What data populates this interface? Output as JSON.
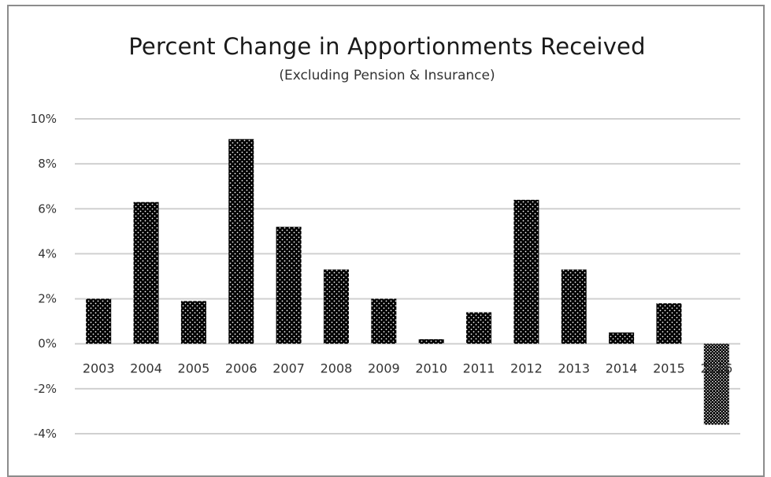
{
  "chart_data": {
    "type": "bar",
    "title": "Percent Change in Apportionments Received",
    "subtitle": "(Excluding Pension & Insurance)",
    "xlabel": "",
    "ylabel": "",
    "categories": [
      "2003",
      "2004",
      "2005",
      "2006",
      "2007",
      "2008",
      "2009",
      "2010",
      "2011",
      "2012",
      "2013",
      "2014",
      "2015",
      "2016"
    ],
    "values": [
      2.0,
      6.3,
      1.9,
      9.1,
      5.2,
      3.3,
      2.0,
      0.2,
      1.4,
      6.4,
      3.3,
      0.5,
      1.8,
      -3.6
    ],
    "value_unit": "%",
    "ylim": [
      -4,
      10
    ],
    "yticks": [
      10,
      8,
      6,
      4,
      2,
      0,
      -2,
      -4
    ],
    "ytick_labels": [
      "10%",
      "8%",
      "6%",
      "4%",
      "2%",
      "0%",
      "-2%",
      "-4%"
    ],
    "grid": true,
    "legend": "none",
    "colors": {
      "bar": "#000000",
      "bar_dots": "#ffffff",
      "gridline": "#d0d0d0",
      "frame": "#8c8c8c",
      "text": "#333333"
    }
  }
}
